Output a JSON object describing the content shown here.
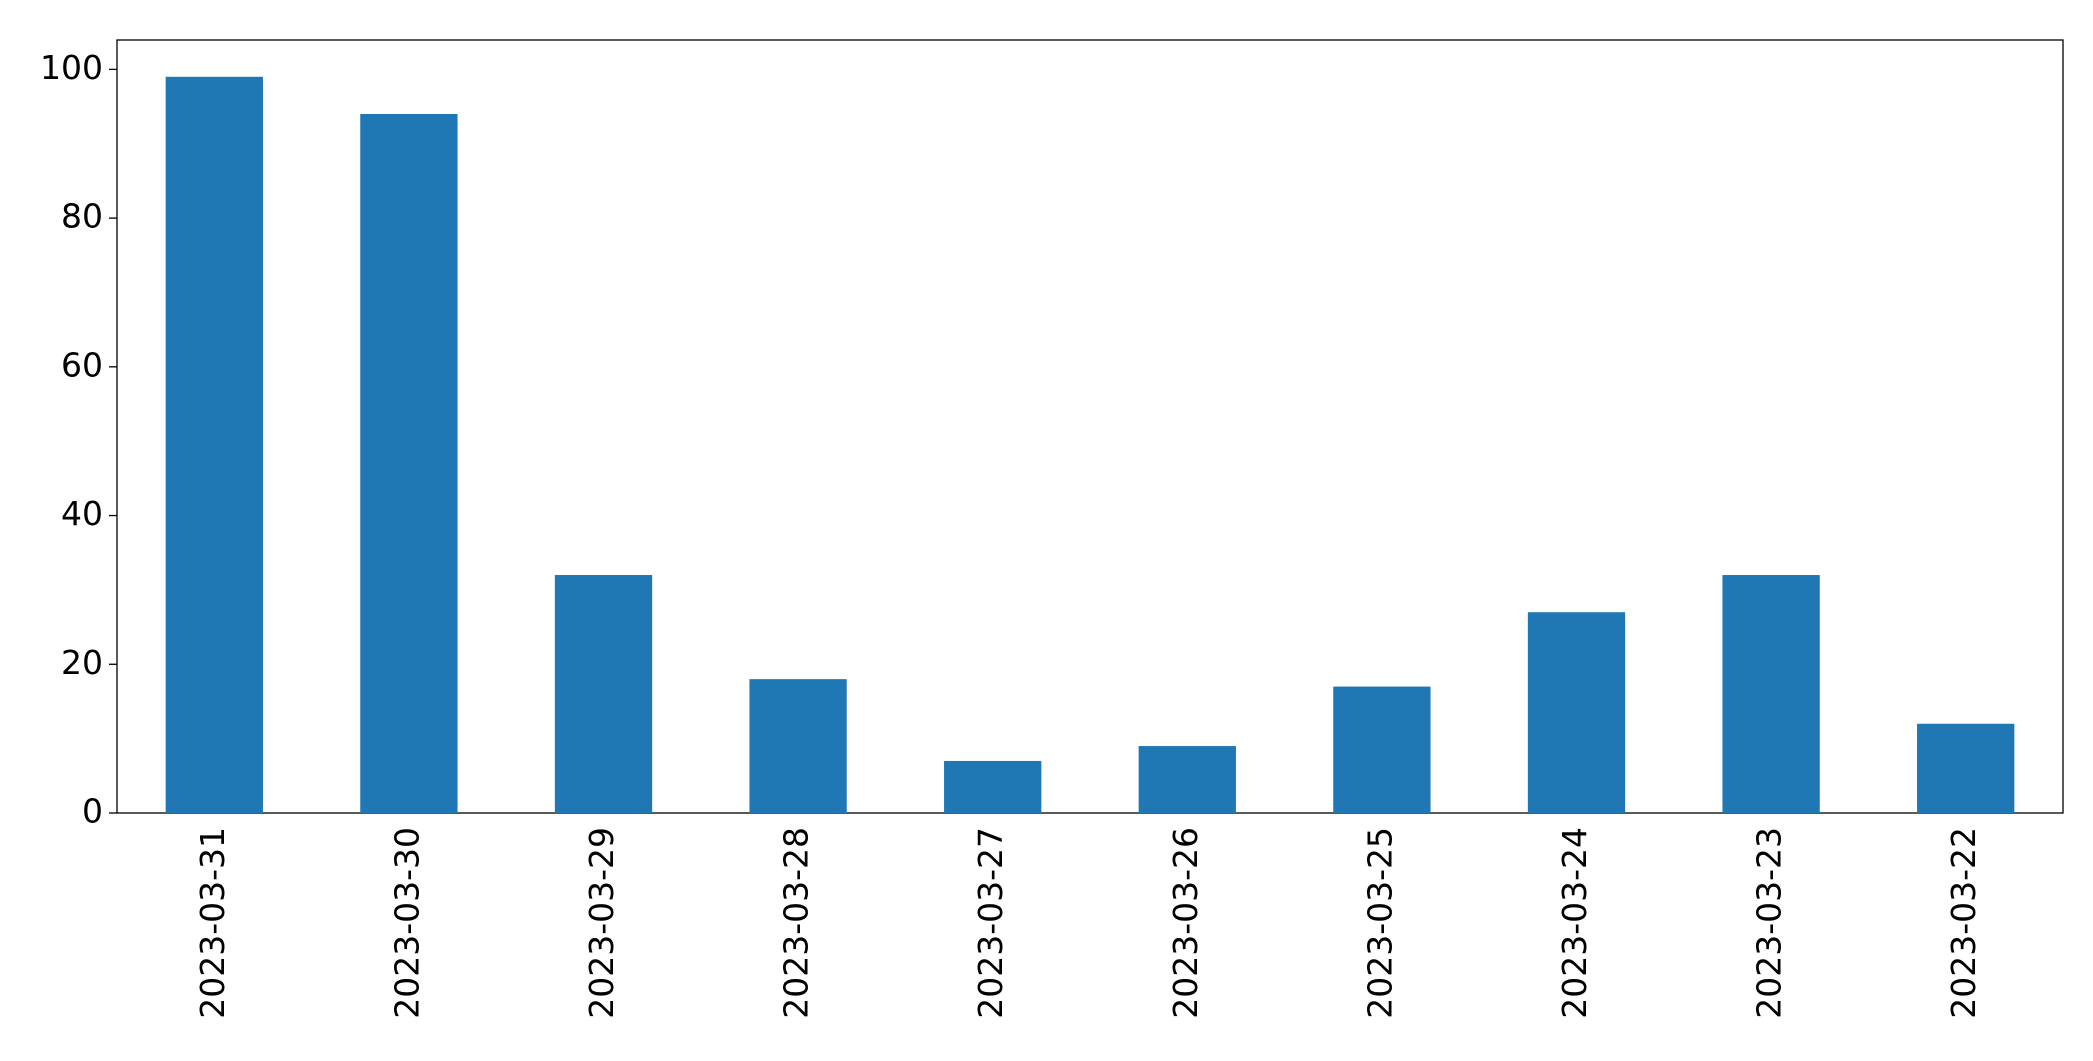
{
  "chart_data": {
    "type": "bar",
    "categories": [
      "2023-03-31",
      "2023-03-30",
      "2023-03-29",
      "2023-03-28",
      "2023-03-27",
      "2023-03-26",
      "2023-03-25",
      "2023-03-24",
      "2023-03-23",
      "2023-03-22"
    ],
    "values": [
      99,
      94,
      32,
      18,
      7,
      9,
      17,
      27,
      32,
      12
    ],
    "color": "#1f77b4",
    "ylim": [
      0,
      103.95
    ],
    "yticks": [
      0,
      20,
      40,
      60,
      80,
      100
    ],
    "grid": false
  }
}
